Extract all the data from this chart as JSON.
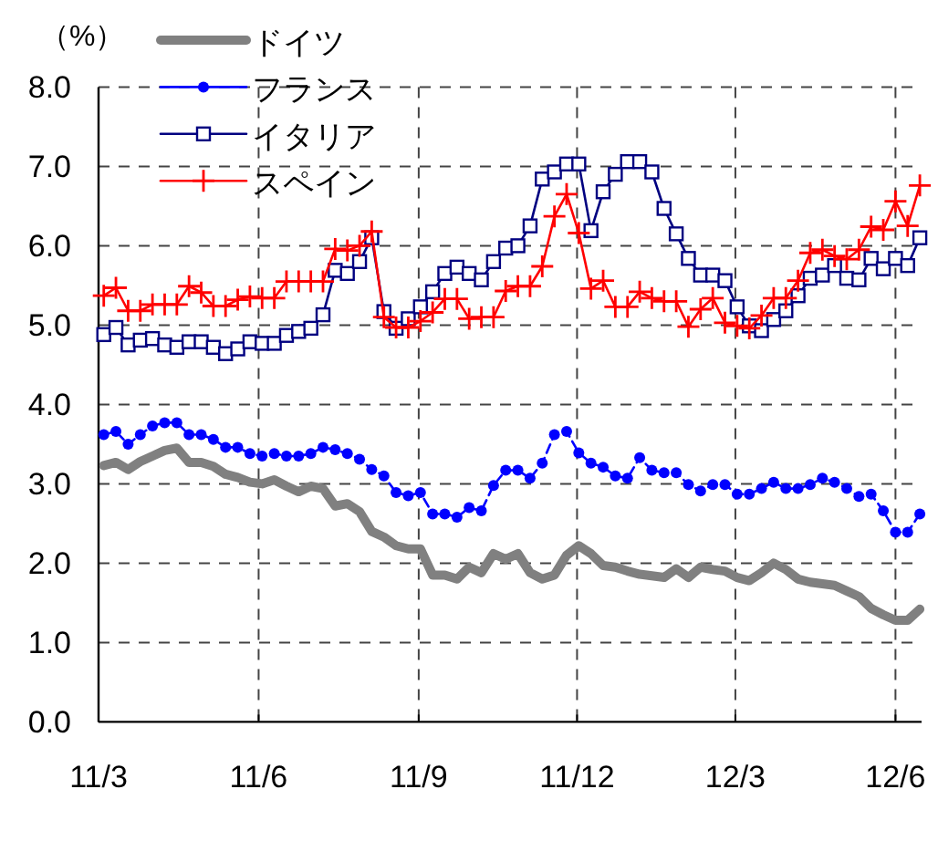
{
  "chart_data": {
    "type": "line",
    "ylabel": "（%）",
    "legend": "top left",
    "grid": true,
    "x": [
      "2011-03-04",
      "2011-03-11",
      "2011-03-18",
      "2011-03-25",
      "2011-04-01",
      "2011-04-08",
      "2011-04-15",
      "2011-04-22",
      "2011-04-29",
      "2011-05-06",
      "2011-05-13",
      "2011-05-20",
      "2011-05-27",
      "2011-06-03",
      "2011-06-10",
      "2011-06-17",
      "2011-06-24",
      "2011-07-01",
      "2011-07-08",
      "2011-07-15",
      "2011-07-22",
      "2011-07-29",
      "2011-08-05",
      "2011-08-12",
      "2011-08-19",
      "2011-08-26",
      "2011-09-02",
      "2011-09-09",
      "2011-09-16",
      "2011-09-23",
      "2011-09-30",
      "2011-10-07",
      "2011-10-14",
      "2011-10-21",
      "2011-10-28",
      "2011-11-04",
      "2011-11-11",
      "2011-11-18",
      "2011-11-25",
      "2011-12-02",
      "2011-12-09",
      "2011-12-16",
      "2011-12-23",
      "2011-12-30",
      "2012-01-06",
      "2012-01-13",
      "2012-01-20",
      "2012-01-27",
      "2012-02-03",
      "2012-02-10",
      "2012-02-17",
      "2012-02-24",
      "2012-03-02",
      "2012-03-09",
      "2012-03-16",
      "2012-03-23",
      "2012-03-30",
      "2012-04-06",
      "2012-04-13",
      "2012-04-20",
      "2012-04-27",
      "2012-05-04",
      "2012-05-11",
      "2012-05-18",
      "2012-05-25",
      "2012-06-01",
      "2012-06-08",
      "2012-06-15"
    ],
    "series": [
      {
        "name": "ドイツ",
        "color": "#808080",
        "marker": "none",
        "line_style": "solid",
        "values": [
          3.23,
          3.27,
          3.18,
          3.28,
          3.35,
          3.42,
          3.45,
          3.27,
          3.27,
          3.22,
          3.12,
          3.08,
          3.02,
          3.0,
          3.05,
          2.97,
          2.9,
          2.97,
          2.94,
          2.72,
          2.75,
          2.65,
          2.4,
          2.33,
          2.22,
          2.18,
          2.18,
          1.85,
          1.85,
          1.8,
          1.95,
          1.88,
          2.12,
          2.05,
          2.12,
          1.88,
          1.8,
          1.85,
          2.1,
          2.22,
          2.12,
          1.97,
          1.95,
          1.9,
          1.86,
          1.84,
          1.82,
          1.93,
          1.82,
          1.95,
          1.92,
          1.9,
          1.82,
          1.78,
          1.88,
          2.0,
          1.92,
          1.8,
          1.76,
          1.74,
          1.72,
          1.65,
          1.58,
          1.43,
          1.35,
          1.28,
          1.28,
          1.42
        ]
      },
      {
        "name": "フランス",
        "color": "#0000ff",
        "marker": "circle",
        "line_style": "dashed",
        "values": [
          3.62,
          3.66,
          3.5,
          3.62,
          3.73,
          3.77,
          3.77,
          3.62,
          3.62,
          3.56,
          3.46,
          3.46,
          3.38,
          3.35,
          3.38,
          3.35,
          3.35,
          3.38,
          3.46,
          3.43,
          3.38,
          3.31,
          3.18,
          3.1,
          2.89,
          2.85,
          2.89,
          2.62,
          2.62,
          2.58,
          2.7,
          2.66,
          2.98,
          3.17,
          3.17,
          3.07,
          3.26,
          3.62,
          3.66,
          3.39,
          3.26,
          3.21,
          3.1,
          3.07,
          3.33,
          3.17,
          3.14,
          3.14,
          2.99,
          2.91,
          2.99,
          2.99,
          2.87,
          2.87,
          2.94,
          3.02,
          2.94,
          2.94,
          2.99,
          3.07,
          3.02,
          2.94,
          2.84,
          2.87,
          2.66,
          2.39,
          2.39,
          2.62
        ]
      },
      {
        "name": "イタリア",
        "color": "#000080",
        "marker": "square",
        "line_style": "solid",
        "values": [
          4.88,
          4.97,
          4.75,
          4.81,
          4.83,
          4.75,
          4.72,
          4.79,
          4.79,
          4.72,
          4.64,
          4.7,
          4.79,
          4.77,
          4.77,
          4.87,
          4.92,
          4.96,
          5.13,
          5.69,
          5.65,
          5.8,
          6.1,
          5.17,
          4.96,
          5.08,
          5.23,
          5.42,
          5.65,
          5.73,
          5.65,
          5.57,
          5.8,
          5.97,
          6.0,
          6.25,
          6.84,
          6.93,
          7.03,
          7.03,
          6.19,
          6.68,
          6.9,
          7.06,
          7.06,
          6.93,
          6.47,
          6.15,
          5.84,
          5.63,
          5.63,
          5.56,
          5.23,
          4.99,
          4.93,
          5.07,
          5.18,
          5.37,
          5.59,
          5.63,
          5.75,
          5.59,
          5.57,
          5.84,
          5.71,
          5.84,
          5.75,
          6.1
        ]
      },
      {
        "name": "スペイン",
        "color": "#ff0000",
        "marker": "cross",
        "line_style": "solid",
        "values": [
          5.37,
          5.47,
          5.18,
          5.18,
          5.26,
          5.26,
          5.26,
          5.49,
          5.41,
          5.24,
          5.24,
          5.32,
          5.36,
          5.34,
          5.34,
          5.55,
          5.55,
          5.55,
          5.55,
          5.96,
          5.94,
          6.0,
          6.18,
          5.1,
          4.97,
          4.97,
          5.05,
          5.16,
          5.33,
          5.33,
          5.08,
          5.1,
          5.1,
          5.43,
          5.49,
          5.49,
          5.74,
          6.37,
          6.65,
          6.16,
          5.46,
          5.56,
          5.23,
          5.23,
          5.42,
          5.34,
          5.3,
          5.3,
          4.98,
          5.2,
          5.34,
          5.03,
          4.99,
          4.96,
          5.12,
          5.34,
          5.34,
          5.56,
          5.91,
          5.95,
          5.87,
          5.83,
          5.95,
          6.24,
          6.2,
          6.56,
          6.25,
          6.76
        ]
      }
    ],
    "xlim": [
      "2011-03-01",
      "2012-06-16"
    ],
    "xticks": [
      {
        "value": "2011-03-01",
        "label": "11/3"
      },
      {
        "value": "2011-06-01",
        "label": "11/6"
      },
      {
        "value": "2011-09-01",
        "label": "11/9"
      },
      {
        "value": "2011-12-01",
        "label": "11/12"
      },
      {
        "value": "2012-03-01",
        "label": "12/3"
      },
      {
        "value": "2012-06-01",
        "label": "12/6"
      }
    ],
    "ylim": [
      0,
      8
    ],
    "yticks": [
      {
        "value": 0,
        "label": "0.0"
      },
      {
        "value": 1,
        "label": "1.0"
      },
      {
        "value": 2,
        "label": "2.0"
      },
      {
        "value": 3,
        "label": "3.0"
      },
      {
        "value": 4,
        "label": "4.0"
      },
      {
        "value": 5,
        "label": "5.0"
      },
      {
        "value": 6,
        "label": "6.0"
      },
      {
        "value": 7,
        "label": "7.0"
      },
      {
        "value": 8,
        "label": "8.0"
      }
    ]
  }
}
